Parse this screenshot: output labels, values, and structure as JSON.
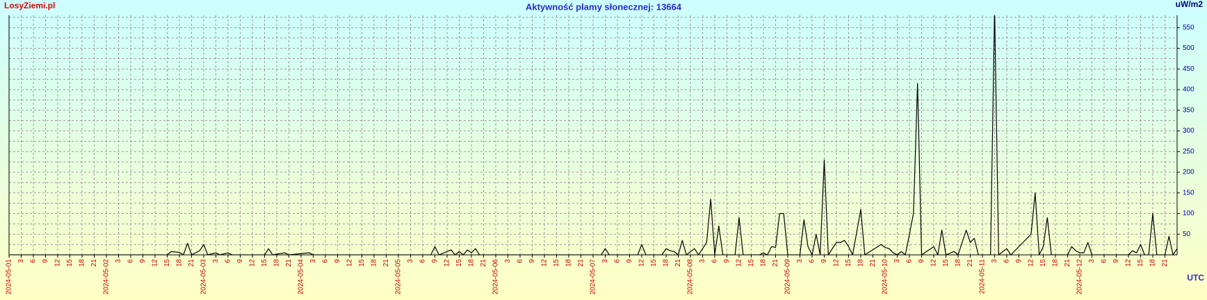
{
  "chart_data": {
    "type": "line",
    "title": "Aktywność plamy słonecznej: 13664",
    "source": "LosyZiemi.pl",
    "y_label": "uW/m2",
    "x_label": "UTC",
    "color": "#000000",
    "grid": true,
    "y_axis_side": "right",
    "xlim": [
      "2024-05-01 00:00",
      "2024-05-13 00:00"
    ],
    "ylim": [
      0,
      580
    ],
    "yticks": [
      50,
      100,
      150,
      200,
      250,
      300,
      350,
      400,
      450,
      500,
      550
    ],
    "y_minor_ticks": [
      25,
      75,
      125,
      175,
      225,
      275,
      325,
      375,
      425,
      475,
      525,
      575
    ],
    "xticks": [
      {
        "value": "2024-05-01 00:00",
        "label": "2024-05-01"
      },
      {
        "value": "2024-05-01 03:00",
        "label": "3"
      },
      {
        "value": "2024-05-01 06:00",
        "label": "6"
      },
      {
        "value": "2024-05-01 09:00",
        "label": "9"
      },
      {
        "value": "2024-05-01 12:00",
        "label": "12"
      },
      {
        "value": "2024-05-01 15:00",
        "label": "15"
      },
      {
        "value": "2024-05-01 18:00",
        "label": "18"
      },
      {
        "value": "2024-05-01 21:00",
        "label": "21"
      },
      {
        "value": "2024-05-02 00:00",
        "label": "2024-05-02"
      },
      {
        "value": "2024-05-02 03:00",
        "label": "3"
      },
      {
        "value": "2024-05-02 06:00",
        "label": "6"
      },
      {
        "value": "2024-05-02 09:00",
        "label": "9"
      },
      {
        "value": "2024-05-02 12:00",
        "label": "12"
      },
      {
        "value": "2024-05-02 15:00",
        "label": "15"
      },
      {
        "value": "2024-05-02 18:00",
        "label": "18"
      },
      {
        "value": "2024-05-02 21:00",
        "label": "21"
      },
      {
        "value": "2024-05-03 00:00",
        "label": "2024-05-03"
      },
      {
        "value": "2024-05-03 03:00",
        "label": "3"
      },
      {
        "value": "2024-05-03 06:00",
        "label": "6"
      },
      {
        "value": "2024-05-03 09:00",
        "label": "9"
      },
      {
        "value": "2024-05-03 12:00",
        "label": "12"
      },
      {
        "value": "2024-05-03 15:00",
        "label": "15"
      },
      {
        "value": "2024-05-03 18:00",
        "label": "18"
      },
      {
        "value": "2024-05-03 21:00",
        "label": "21"
      },
      {
        "value": "2024-05-04 00:00",
        "label": "2024-05-04"
      },
      {
        "value": "2024-05-04 03:00",
        "label": "3"
      },
      {
        "value": "2024-05-04 06:00",
        "label": "6"
      },
      {
        "value": "2024-05-04 09:00",
        "label": "9"
      },
      {
        "value": "2024-05-04 12:00",
        "label": "12"
      },
      {
        "value": "2024-05-04 15:00",
        "label": "15"
      },
      {
        "value": "2024-05-04 18:00",
        "label": "18"
      },
      {
        "value": "2024-05-04 21:00",
        "label": "21"
      },
      {
        "value": "2024-05-05 00:00",
        "label": "2024-05-05"
      },
      {
        "value": "2024-05-05 03:00",
        "label": "3"
      },
      {
        "value": "2024-05-05 06:00",
        "label": "6"
      },
      {
        "value": "2024-05-05 09:00",
        "label": "9"
      },
      {
        "value": "2024-05-05 12:00",
        "label": "12"
      },
      {
        "value": "2024-05-05 15:00",
        "label": "15"
      },
      {
        "value": "2024-05-05 18:00",
        "label": "18"
      },
      {
        "value": "2024-05-05 21:00",
        "label": "21"
      },
      {
        "value": "2024-05-06 00:00",
        "label": "2024-05-06"
      },
      {
        "value": "2024-05-06 03:00",
        "label": "3"
      },
      {
        "value": "2024-05-06 06:00",
        "label": "6"
      },
      {
        "value": "2024-05-06 09:00",
        "label": "9"
      },
      {
        "value": "2024-05-06 12:00",
        "label": "12"
      },
      {
        "value": "2024-05-06 15:00",
        "label": "15"
      },
      {
        "value": "2024-05-06 18:00",
        "label": "18"
      },
      {
        "value": "2024-05-06 21:00",
        "label": "21"
      },
      {
        "value": "2024-05-07 00:00",
        "label": "2024-05-07"
      },
      {
        "value": "2024-05-07 03:00",
        "label": "3"
      },
      {
        "value": "2024-05-07 06:00",
        "label": "6"
      },
      {
        "value": "2024-05-07 09:00",
        "label": "9"
      },
      {
        "value": "2024-05-07 12:00",
        "label": "12"
      },
      {
        "value": "2024-05-07 15:00",
        "label": "15"
      },
      {
        "value": "2024-05-07 18:00",
        "label": "18"
      },
      {
        "value": "2024-05-07 21:00",
        "label": "21"
      },
      {
        "value": "2024-05-08 00:00",
        "label": "2024-05-08"
      },
      {
        "value": "2024-05-08 03:00",
        "label": "3"
      },
      {
        "value": "2024-05-08 06:00",
        "label": "6"
      },
      {
        "value": "2024-05-08 09:00",
        "label": "9"
      },
      {
        "value": "2024-05-08 12:00",
        "label": "12"
      },
      {
        "value": "2024-05-08 15:00",
        "label": "15"
      },
      {
        "value": "2024-05-08 18:00",
        "label": "18"
      },
      {
        "value": "2024-05-08 21:00",
        "label": "21"
      },
      {
        "value": "2024-05-09 00:00",
        "label": "2024-05-09"
      },
      {
        "value": "2024-05-09 03:00",
        "label": "3"
      },
      {
        "value": "2024-05-09 06:00",
        "label": "6"
      },
      {
        "value": "2024-05-09 09:00",
        "label": "9"
      },
      {
        "value": "2024-05-09 12:00",
        "label": "12"
      },
      {
        "value": "2024-05-09 15:00",
        "label": "15"
      },
      {
        "value": "2024-05-09 18:00",
        "label": "18"
      },
      {
        "value": "2024-05-09 21:00",
        "label": "21"
      },
      {
        "value": "2024-05-10 00:00",
        "label": "2024-05-10"
      },
      {
        "value": "2024-05-10 03:00",
        "label": "3"
      },
      {
        "value": "2024-05-10 06:00",
        "label": "6"
      },
      {
        "value": "2024-05-10 09:00",
        "label": "9"
      },
      {
        "value": "2024-05-10 12:00",
        "label": "12"
      },
      {
        "value": "2024-05-10 15:00",
        "label": "15"
      },
      {
        "value": "2024-05-10 18:00",
        "label": "18"
      },
      {
        "value": "2024-05-10 21:00",
        "label": "21"
      },
      {
        "value": "2024-05-11 00:00",
        "label": "2024-05-11"
      },
      {
        "value": "2024-05-11 03:00",
        "label": "3"
      },
      {
        "value": "2024-05-11 06:00",
        "label": "6"
      },
      {
        "value": "2024-05-11 09:00",
        "label": "9"
      },
      {
        "value": "2024-05-11 12:00",
        "label": "12"
      },
      {
        "value": "2024-05-11 15:00",
        "label": "15"
      },
      {
        "value": "2024-05-11 18:00",
        "label": "18"
      },
      {
        "value": "2024-05-11 21:00",
        "label": "21"
      },
      {
        "value": "2024-05-12 00:00",
        "label": "2024-05-12"
      },
      {
        "value": "2024-05-12 03:00",
        "label": "3"
      },
      {
        "value": "2024-05-12 06:00",
        "label": "6"
      },
      {
        "value": "2024-05-12 09:00",
        "label": "9"
      },
      {
        "value": "2024-05-12 12:00",
        "label": "12"
      },
      {
        "value": "2024-05-12 15:00",
        "label": "15"
      },
      {
        "value": "2024-05-12 18:00",
        "label": "18"
      },
      {
        "value": "2024-05-12 21:00",
        "label": "21"
      }
    ],
    "x": [
      "2024-05-01 00:00",
      "2024-05-02 15:00",
      "2024-05-02 16:00",
      "2024-05-02 18:00",
      "2024-05-02 19:00",
      "2024-05-02 20:00",
      "2024-05-02 21:00",
      "2024-05-02 23:00",
      "2024-05-03 00:00",
      "2024-05-03 01:00",
      "2024-05-03 03:00",
      "2024-05-03 04:00",
      "2024-05-03 06:00",
      "2024-05-03 07:00",
      "2024-05-03 15:00",
      "2024-05-03 16:00",
      "2024-05-03 17:00",
      "2024-05-03 20:00",
      "2024-05-03 21:00",
      "2024-05-04 02:00",
      "2024-05-04 03:00",
      "2024-05-05 08:00",
      "2024-05-05 09:00",
      "2024-05-05 10:00",
      "2024-05-05 13:00",
      "2024-05-05 14:00",
      "2024-05-05 15:00",
      "2024-05-05 16:00",
      "2024-05-05 17:00",
      "2024-05-05 18:00",
      "2024-05-05 19:00",
      "2024-05-05 20:00",
      "2024-05-07 02:00",
      "2024-05-07 03:00",
      "2024-05-07 04:00",
      "2024-05-07 11:00",
      "2024-05-07 12:00",
      "2024-05-07 13:00",
      "2024-05-07 17:00",
      "2024-05-07 18:00",
      "2024-05-07 19:00",
      "2024-05-07 20:00",
      "2024-05-07 21:00",
      "2024-05-07 22:00",
      "2024-05-07 23:00",
      "2024-05-08 01:00",
      "2024-05-08 02:00",
      "2024-05-08 04:00",
      "2024-05-08 05:00",
      "2024-05-08 06:00",
      "2024-05-08 07:00",
      "2024-05-08 08:00",
      "2024-05-08 11:00",
      "2024-05-08 12:00",
      "2024-05-08 13:00",
      "2024-05-08 17:00",
      "2024-05-08 18:00",
      "2024-05-08 19:00",
      "2024-05-08 20:00",
      "2024-05-08 21:00",
      "2024-05-08 22:00",
      "2024-05-08 23:00",
      "2024-05-09 00:00",
      "2024-05-09 03:00",
      "2024-05-09 04:00",
      "2024-05-09 05:00",
      "2024-05-09 06:00",
      "2024-05-09 07:00",
      "2024-05-09 08:00",
      "2024-05-09 09:00",
      "2024-05-09 10:00",
      "2024-05-09 12:00",
      "2024-05-09 13:00",
      "2024-05-09 14:00",
      "2024-05-09 15:00",
      "2024-05-09 16:00",
      "2024-05-09 18:00",
      "2024-05-09 19:00",
      "2024-05-09 23:00",
      "2024-05-10 00:00",
      "2024-05-10 01:00",
      "2024-05-10 02:00",
      "2024-05-10 03:00",
      "2024-05-10 04:00",
      "2024-05-10 05:00",
      "2024-05-10 07:00",
      "2024-05-10 08:00",
      "2024-05-10 09:00",
      "2024-05-10 12:00",
      "2024-05-10 13:00",
      "2024-05-10 14:00",
      "2024-05-10 15:00",
      "2024-05-10 17:00",
      "2024-05-10 18:00",
      "2024-05-10 20:00",
      "2024-05-10 21:00",
      "2024-05-10 22:00",
      "2024-05-10 23:00",
      "2024-05-11 02:00",
      "2024-05-11 03:00",
      "2024-05-11 04:00",
      "2024-05-11 06:00",
      "2024-05-11 07:00",
      "2024-05-11 12:00",
      "2024-05-11 13:00",
      "2024-05-11 14:00",
      "2024-05-11 15:00",
      "2024-05-11 16:00",
      "2024-05-11 17:00",
      "2024-05-11 21:00",
      "2024-05-11 22:00",
      "2024-05-11 23:00",
      "2024-05-12 00:00",
      "2024-05-12 01:00",
      "2024-05-12 02:00",
      "2024-05-12 03:00",
      "2024-05-12 12:00",
      "2024-05-12 13:00",
      "2024-05-12 14:00",
      "2024-05-12 15:00",
      "2024-05-12 16:00",
      "2024-05-12 17:00",
      "2024-05-12 18:00",
      "2024-05-12 19:00",
      "2024-05-12 21:00",
      "2024-05-12 22:00",
      "2024-05-12 23:00",
      "2024-05-13 00:00"
    ],
    "values": [
      0,
      0,
      8,
      6,
      0,
      28,
      0,
      10,
      25,
      0,
      5,
      0,
      5,
      0,
      0,
      15,
      0,
      5,
      0,
      5,
      0,
      0,
      20,
      0,
      12,
      0,
      8,
      0,
      12,
      5,
      15,
      0,
      0,
      15,
      0,
      0,
      25,
      0,
      0,
      15,
      10,
      8,
      0,
      35,
      0,
      15,
      0,
      30,
      135,
      0,
      70,
      0,
      0,
      90,
      0,
      0,
      5,
      0,
      20,
      18,
      100,
      100,
      0,
      0,
      85,
      20,
      0,
      50,
      0,
      230,
      0,
      30,
      30,
      35,
      20,
      0,
      110,
      0,
      25,
      18,
      15,
      5,
      0,
      8,
      0,
      100,
      415,
      0,
      20,
      0,
      60,
      0,
      8,
      0,
      60,
      30,
      40,
      0,
      0,
      600,
      0,
      15,
      0,
      50,
      150,
      0,
      20,
      90,
      0,
      0,
      20,
      10,
      5,
      5,
      30,
      0,
      0,
      10,
      5,
      25,
      0,
      0,
      100,
      0,
      0,
      45,
      0,
      15
    ]
  }
}
